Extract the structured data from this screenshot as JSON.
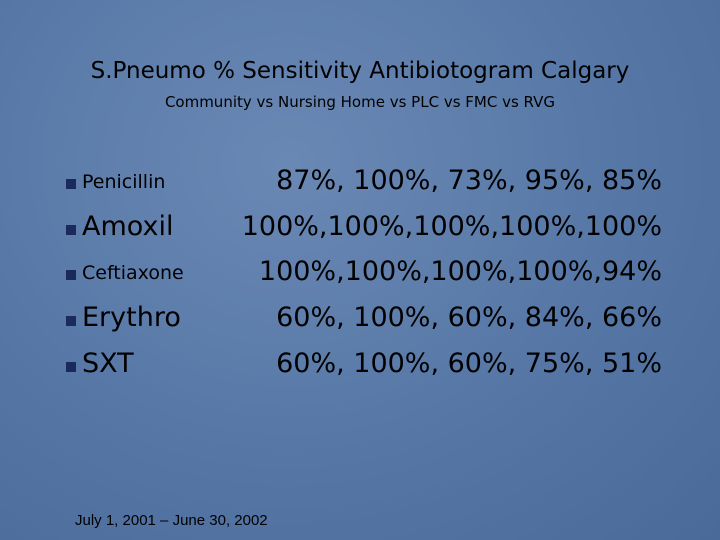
{
  "header": {
    "title": "S.Pneumo % Sensitivity Antibiotogram Calgary",
    "subtitle": "Community vs Nursing Home vs PLC vs FMC vs RVG"
  },
  "items": [
    {
      "name": "Penicillin",
      "values": "87%, 100%, 73%, 95%, 85%"
    },
    {
      "name": "Amoxil",
      "values": "100%,100%,100%,100%,100%"
    },
    {
      "name": "Ceftiaxone",
      "values": "100%,100%,100%,100%,94%"
    },
    {
      "name": "Erythro",
      "values": "60%, 100%, 60%, 84%, 66%"
    },
    {
      "name": "SXT",
      "values": "60%, 100%, 60%, 75%, 51%"
    }
  ],
  "footer": {
    "date_range": "July 1, 2001 – June 30, 2002"
  }
}
